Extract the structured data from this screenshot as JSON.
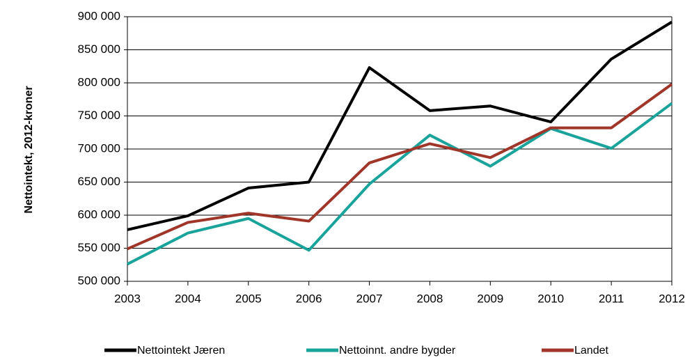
{
  "chart_data": {
    "type": "line",
    "y_label": "Nettointekt,  2012-kroner",
    "categories": [
      "2003",
      "2004",
      "2005",
      "2006",
      "2007",
      "2008",
      "2009",
      "2010",
      "2011",
      "2012"
    ],
    "series": [
      {
        "name": "Nettointekt Jæren",
        "color": "#000000",
        "values": [
          578000,
          599000,
          641000,
          650000,
          823000,
          758000,
          765000,
          741000,
          836000,
          892000
        ]
      },
      {
        "name": "Nettoinnt. andre bygder",
        "color": "#1aa39a",
        "values": [
          526000,
          573000,
          595000,
          547000,
          647000,
          721000,
          674000,
          731000,
          701000,
          769000
        ]
      },
      {
        "name": "Landet",
        "color": "#a0362a",
        "values": [
          549000,
          589000,
          603000,
          591000,
          679000,
          708000,
          687000,
          732000,
          732000,
          798000
        ]
      }
    ],
    "ylim": [
      500000,
      900000
    ],
    "yticks": [
      {
        "value": 500000,
        "label": "500 000"
      },
      {
        "value": 550000,
        "label": "550 000"
      },
      {
        "value": 600000,
        "label": "600 000"
      },
      {
        "value": 650000,
        "label": "650 000"
      },
      {
        "value": 700000,
        "label": "700 000"
      },
      {
        "value": 750000,
        "label": "750 000"
      },
      {
        "value": 800000,
        "label": "800 000"
      },
      {
        "value": 850000,
        "label": "850 000"
      },
      {
        "value": 900000,
        "label": "900 000"
      }
    ],
    "grid": true,
    "legend": "bottom"
  }
}
